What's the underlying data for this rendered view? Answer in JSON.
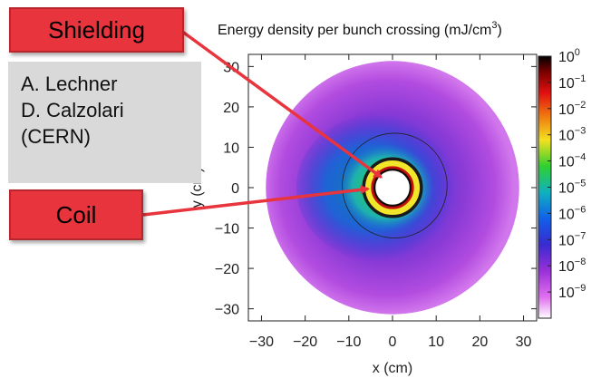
{
  "chart_data": {
    "type": "heatmap",
    "title": "Energy density per bunch crossing (mJ/cm",
    "title_sup": "3",
    "title_tail": ")",
    "xlabel": "x (cm)",
    "ylabel": "y (cm)",
    "xlim": [
      -33,
      33
    ],
    "ylim": [
      -33,
      33
    ],
    "x_ticks": [
      "−30",
      "−20",
      "−10",
      "0",
      "10",
      "20",
      "30"
    ],
    "x_tick_values": [
      -30,
      -20,
      -10,
      0,
      10,
      20,
      30
    ],
    "y_ticks": [
      "30",
      "20",
      "10",
      "0",
      "−10",
      "−20",
      "−30"
    ],
    "y_tick_values": [
      30,
      20,
      10,
      0,
      -10,
      -20,
      -30
    ],
    "colorbar": {
      "scale": "log",
      "min": 1e-10,
      "max": 1,
      "tick_base": "10",
      "tick_exponents": [
        "0",
        "−1",
        "−2",
        "−3",
        "−4",
        "−5",
        "−6",
        "−7",
        "−8",
        "−9"
      ],
      "tick_values": [
        1,
        0.1,
        0.01,
        0.001,
        0.0001,
        1e-05,
        1e-06,
        1e-07,
        1e-08,
        1e-09
      ]
    },
    "geometry_cm": {
      "outer_radius": 29,
      "bore_radius": 4,
      "coil_outer_radius": 6,
      "shield_outer_radius": 12
    }
  },
  "annotations": {
    "shielding_label": "Shielding",
    "coil_label": "Coil",
    "credit_lines": [
      "A. Lechner",
      "D. Calzolari",
      "(CERN)"
    ]
  },
  "colors": {
    "callout_fill": "#e8343c",
    "arrow": "#e8343c",
    "credit_background": "#d9d9d9"
  }
}
